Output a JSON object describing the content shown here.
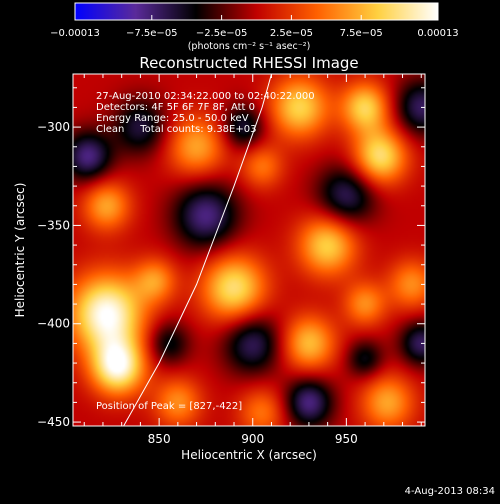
{
  "chart_data": {
    "type": "heatmap",
    "title": "Reconstructed RHESSI Image",
    "xlabel": "Heliocentric X (arcsec)",
    "ylabel": "Heliocentric Y (arcsec)",
    "xlim": [
      804,
      992
    ],
    "ylim": [
      -452,
      -273
    ],
    "x_ticks": [
      850,
      900,
      950
    ],
    "x_tick_labels": [
      "850",
      "900",
      "950"
    ],
    "y_ticks": [
      -300,
      -350,
      -400,
      -450
    ],
    "y_tick_labels": [
      "−300",
      "−350",
      "−400",
      "−450"
    ],
    "colorbar": {
      "range": [
        -0.00013,
        0.00013
      ],
      "ticks": [
        -0.00013,
        -7.5e-05,
        -2.5e-05,
        2.5e-05,
        7.5e-05,
        0.00013
      ],
      "tick_labels": [
        "−0.00013",
        "−7.5e−05",
        "−2.5e−05",
        "2.5e−05",
        "7.5e−05",
        "0.00013"
      ],
      "units_label": "(photons cm⁻² s⁻¹ asec⁻²)",
      "colormap": [
        "#0000ff",
        "#5a2a9a",
        "#000000",
        "#c00000",
        "#ff6000",
        "#ffd040",
        "#ffffff"
      ]
    },
    "annotations": [
      "27-Aug-2010 02:34:22.000 to 02:40:22.000",
      "Detectors: 4F 5F 6F 7F 8F, Att 0",
      "Energy Range: 25.0 - 50.0 keV",
      "Clean     Total counts: 9.38E+03"
    ],
    "peak_label": "Position of Peak = [827,-422]",
    "peak": {
      "x": 827,
      "y": -422
    },
    "limb_curve": {
      "x": [
        831,
        850,
        870,
        890,
        905,
        910
      ],
      "y": [
        -452,
        -420,
        -380,
        -330,
        -290,
        -273
      ]
    },
    "sources": [
      {
        "x": 822,
        "y": -395,
        "amp": 0.00013,
        "sigma": 14
      },
      {
        "x": 828,
        "y": -422,
        "amp": 0.00012,
        "sigma": 10
      },
      {
        "x": 925,
        "y": -290,
        "amp": 9e-05,
        "sigma": 11
      },
      {
        "x": 968,
        "y": -315,
        "amp": 0.0001,
        "sigma": 10
      },
      {
        "x": 960,
        "y": -290,
        "amp": 9e-05,
        "sigma": 9
      },
      {
        "x": 890,
        "y": -382,
        "amp": 0.0001,
        "sigma": 12
      },
      {
        "x": 940,
        "y": -360,
        "amp": 9e-05,
        "sigma": 11
      },
      {
        "x": 930,
        "y": -410,
        "amp": 8e-05,
        "sigma": 10
      },
      {
        "x": 822,
        "y": -340,
        "amp": 7e-05,
        "sigma": 9
      },
      {
        "x": 870,
        "y": -310,
        "amp": 7e-05,
        "sigma": 11
      },
      {
        "x": 905,
        "y": -320,
        "amp": 5e-05,
        "sigma": 8
      },
      {
        "x": 972,
        "y": -440,
        "amp": 7e-05,
        "sigma": 10
      },
      {
        "x": 985,
        "y": -380,
        "amp": 6e-05,
        "sigma": 9
      },
      {
        "x": 860,
        "y": -440,
        "amp": 6e-05,
        "sigma": 9
      },
      {
        "x": 905,
        "y": -445,
        "amp": 5e-05,
        "sigma": 9
      },
      {
        "x": 960,
        "y": -390,
        "amp": 6e-05,
        "sigma": 8
      },
      {
        "x": 848,
        "y": -378,
        "amp": 6e-05,
        "sigma": 8
      },
      {
        "x": 950,
        "y": -335,
        "amp": -7e-05,
        "sigma": 11
      },
      {
        "x": 875,
        "y": -345,
        "amp": -8e-05,
        "sigma": 12
      },
      {
        "x": 812,
        "y": -315,
        "amp": -8e-05,
        "sigma": 9
      },
      {
        "x": 990,
        "y": -290,
        "amp": -7e-05,
        "sigma": 10
      },
      {
        "x": 900,
        "y": -410,
        "amp": -7e-05,
        "sigma": 11
      },
      {
        "x": 990,
        "y": -410,
        "amp": -7e-05,
        "sigma": 8
      },
      {
        "x": 930,
        "y": -440,
        "amp": -8e-05,
        "sigma": 9
      },
      {
        "x": 840,
        "y": -300,
        "amp": -6e-05,
        "sigma": 10
      },
      {
        "x": 895,
        "y": -300,
        "amp": -6e-05,
        "sigma": 8
      },
      {
        "x": 855,
        "y": -410,
        "amp": -5e-05,
        "sigma": 8
      },
      {
        "x": 960,
        "y": -418,
        "amp": -5e-05,
        "sigma": 7
      }
    ]
  },
  "footer": {
    "timestamp": "4-Aug-2013 08:34"
  }
}
